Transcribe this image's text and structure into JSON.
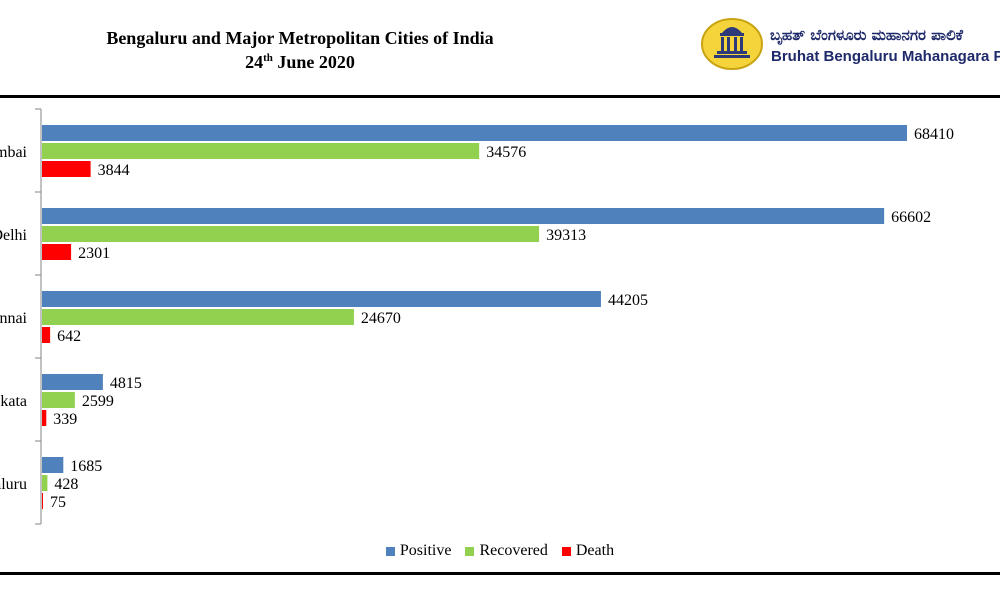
{
  "header": {
    "title_line1": "Bengaluru and Major Metropolitan Cities of India",
    "title_day": "24",
    "title_ordinal": "th",
    "title_rest": " June 2020"
  },
  "logo": {
    "kannada_text": "ಬೃಹತ್ ಬೆಂಗಳೂರು ಮಹಾನಗರ ಪಾಲಿಕೆ",
    "english_text": "Bruhat Bengaluru Mahanagara Palike",
    "emblem_icon": "vidhana-soudha-emblem-icon"
  },
  "chart_data": {
    "type": "bar",
    "orientation": "horizontal",
    "categories": [
      "Mumbai",
      "Delhi",
      "Chennai",
      "Kolkata",
      "Bengaluru"
    ],
    "series": [
      {
        "name": "Positive",
        "color": "#4f81bd",
        "values": [
          68410,
          66602,
          44205,
          4815,
          1685
        ]
      },
      {
        "name": "Recovered",
        "color": "#92d050",
        "values": [
          34576,
          39313,
          24670,
          2599,
          428
        ]
      },
      {
        "name": "Death",
        "color": "#ff0000",
        "values": [
          3844,
          2301,
          642,
          339,
          75
        ]
      }
    ],
    "data_labels": true,
    "legend_position": "bottom",
    "grid": false,
    "xlim": [
      0,
      80000
    ]
  }
}
